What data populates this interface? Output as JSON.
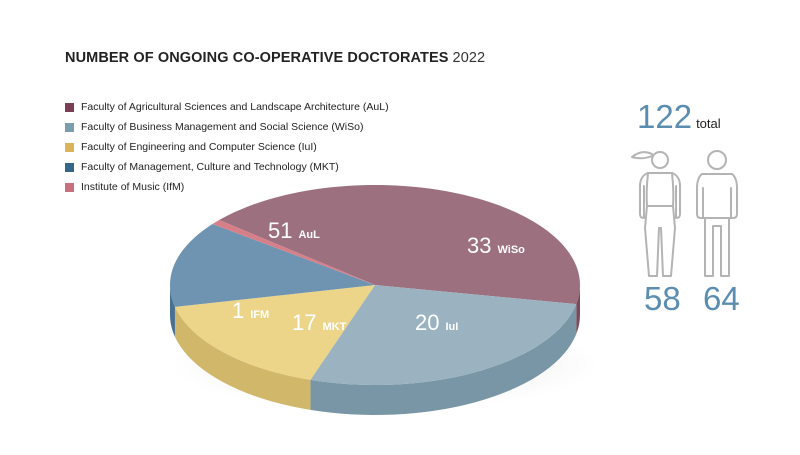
{
  "header": {
    "title": "NUMBER OF ONGOING CO-OPERATIVE DOCTORATES",
    "year": "2022"
  },
  "legend": [
    {
      "label": "Faculty of Agricultural Sciences and Landscape Architecture (AuL)",
      "color": "#7b3e55"
    },
    {
      "label": "Faculty of Business Management and Social Science (WiSo)",
      "color": "#7a9ead"
    },
    {
      "label": "Faculty of Engineering and Computer Science (IuI)",
      "color": "#dbb45a"
    },
    {
      "label": "Faculty of Management, Culture and Technology (MKT)",
      "color": "#346687"
    },
    {
      "label": "Institute of Music (IfM)",
      "color": "#c9707e"
    }
  ],
  "chart_data": {
    "type": "pie",
    "categories": [
      "AuL",
      "WiSo",
      "IuI",
      "MKT",
      "IFM"
    ],
    "values": [
      51,
      33,
      20,
      17,
      1
    ],
    "top_colors": [
      "#9d7080",
      "#9bb3c0",
      "#ecd489",
      "#6e94b1",
      "#d77f89"
    ],
    "side_colors": [
      "#7c4a5d",
      "#7896a5",
      "#d1b76a",
      "#49708f",
      "#b85866"
    ],
    "label_colors": [
      "#ffffff",
      "#ffffff",
      "#ffffff",
      "#ffffff",
      "#ffffff"
    ]
  },
  "summary": {
    "total_value": "122",
    "total_label": "total",
    "female_count": "58",
    "male_count": "64",
    "female_icon": "female-person-icon",
    "male_icon": "male-person-icon",
    "accent": "#5b8db1"
  }
}
